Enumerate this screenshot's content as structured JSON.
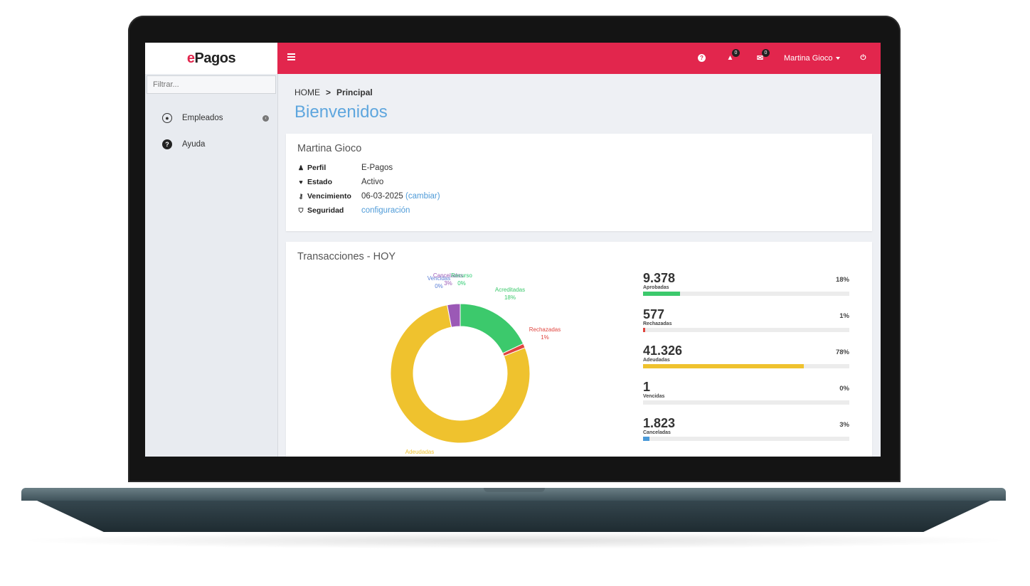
{
  "app": {
    "logo_prefix": "e",
    "logo_suffix": "Pagos",
    "brand_color": "#e2264d",
    "link_color": "#4f9bd8"
  },
  "sidebar": {
    "filter_placeholder": "Filtrar...",
    "items": [
      {
        "label": "Empleados",
        "icon": "user-circle-icon"
      },
      {
        "label": "Ayuda",
        "icon": "help-circle-icon"
      }
    ]
  },
  "topbar": {
    "menu_icon": "hamburger-icon",
    "help_icon": "help-icon",
    "alerts_icon": "warning-icon",
    "alerts_count": "0",
    "messages_icon": "envelope-icon",
    "messages_count": "0",
    "user_name": "Martina Gioco",
    "power_icon": "power-icon"
  },
  "breadcrumb": {
    "home": "HOME",
    "separator": ">",
    "current": "Principal"
  },
  "page_title": "Bienvenidos",
  "profile": {
    "name": "Martina Gioco",
    "rows": {
      "perfil": {
        "label": "Perfil",
        "value": "E-Pagos"
      },
      "estado": {
        "label": "Estado",
        "value": "Activo"
      },
      "vencimiento": {
        "label": "Vencimiento",
        "value": "06-03-2025",
        "link": "(cambiar)"
      },
      "seguridad": {
        "label": "Seguridad",
        "link": "configuración"
      }
    }
  },
  "transactions": {
    "title": "Transacciones - HOY",
    "stats": [
      {
        "value": "9.378",
        "label": "Aprobadas",
        "pct_text": "18%",
        "pct": 18,
        "color": "#3cc96c"
      },
      {
        "value": "577",
        "label": "Rechazadas",
        "pct_text": "1%",
        "pct": 1,
        "color": "#e0453f"
      },
      {
        "value": "41.326",
        "label": "Adeudadas",
        "pct_text": "78%",
        "pct": 78,
        "color": "#efc22e"
      },
      {
        "value": "1",
        "label": "Vencidas",
        "pct_text": "0%",
        "pct": 0,
        "color": "#5b7fd6"
      },
      {
        "value": "1.823",
        "label": "Canceladas",
        "pct_text": "3%",
        "pct": 3,
        "color": "#4b9ad8"
      }
    ]
  },
  "chart_data": {
    "type": "pie",
    "title": "",
    "series": [
      {
        "name": "Acreditadas",
        "value": 18,
        "label": "18%",
        "color": "#3cc96c"
      },
      {
        "name": "Rechazadas",
        "value": 1,
        "label": "1%",
        "color": "#e0453f"
      },
      {
        "name": "Adeudadas",
        "value": 78,
        "label": "",
        "color": "#efc22e"
      },
      {
        "name": "Vencidas",
        "value": 0,
        "label": "0%",
        "color": "#5b7fd6"
      },
      {
        "name": "Canceladas",
        "value": 3,
        "label": "3%",
        "color": "#9b59b6"
      },
      {
        "name": "Recurso",
        "value": 0,
        "label": "0%",
        "color": "#2ecc71"
      }
    ]
  }
}
